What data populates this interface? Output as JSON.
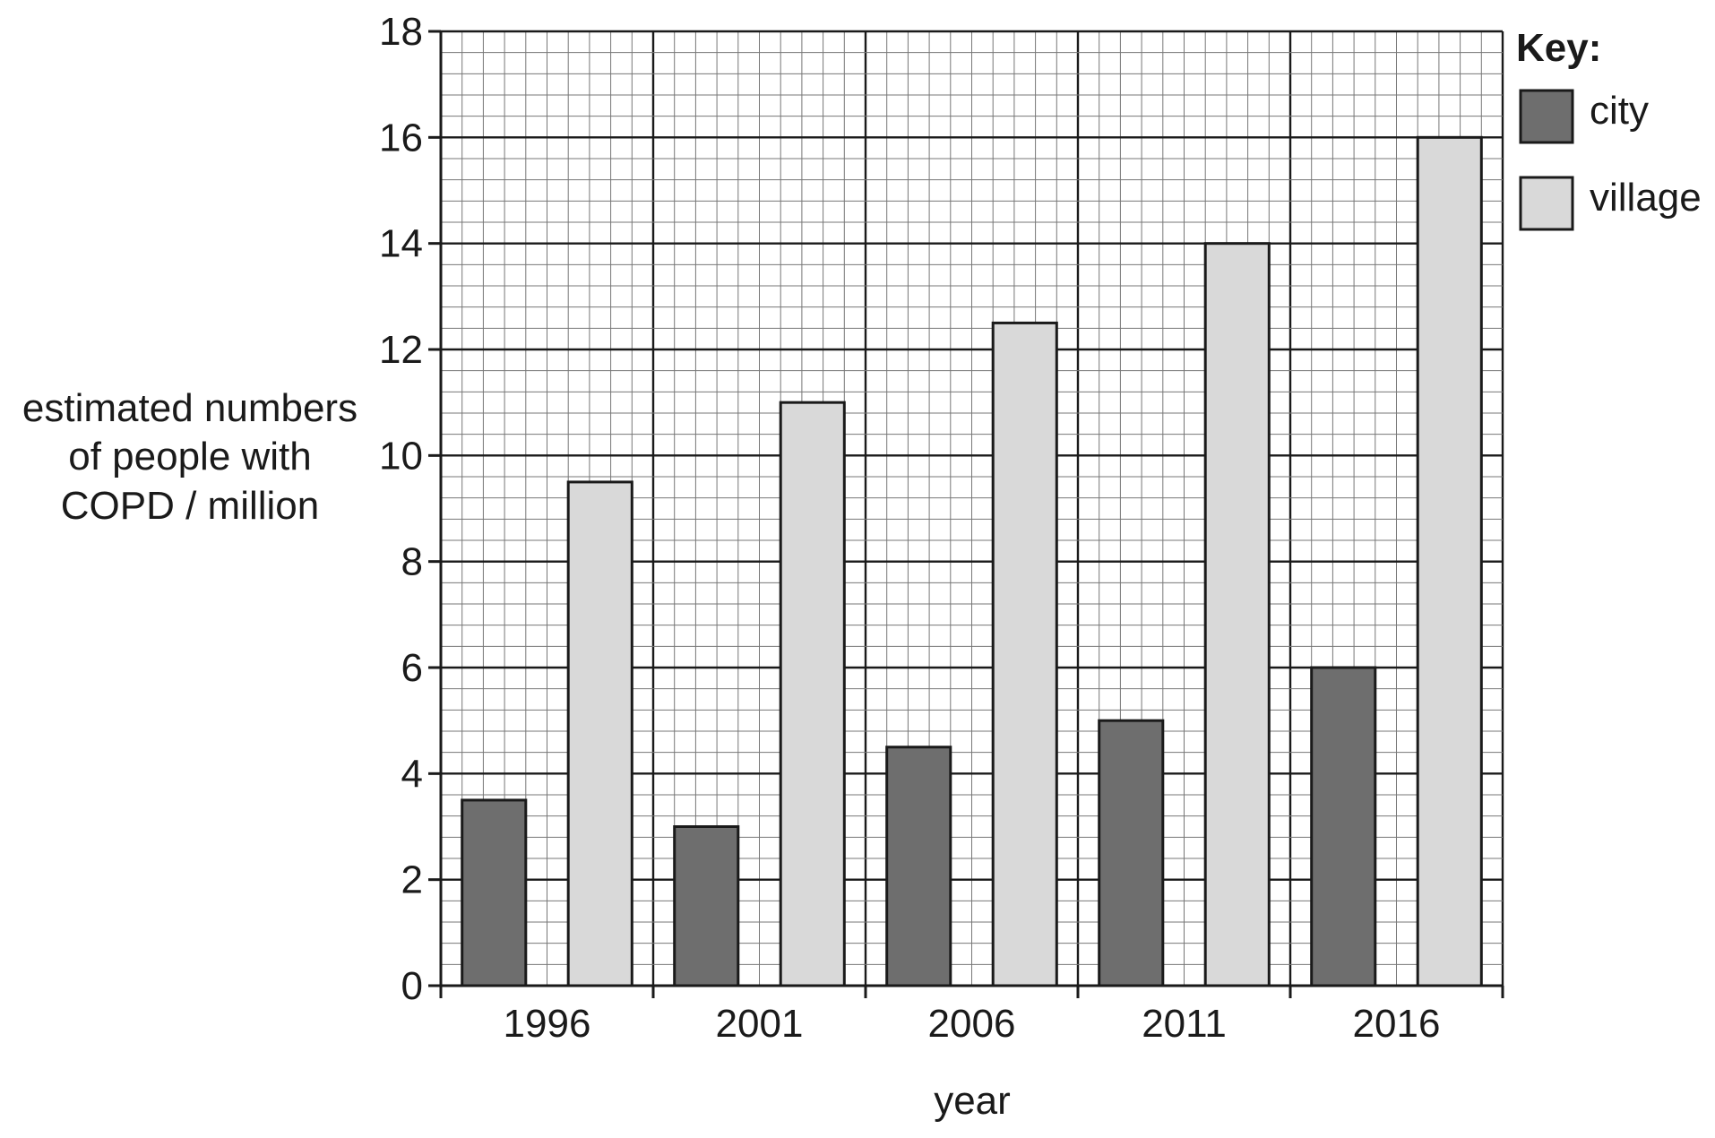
{
  "chart_data": {
    "type": "bar",
    "title": "",
    "xlabel": "year",
    "ylabel_lines": [
      "estimated numbers",
      "of people with",
      "COPD / million"
    ],
    "categories": [
      "1996",
      "2001",
      "2006",
      "2011",
      "2016"
    ],
    "series": [
      {
        "name": "city",
        "values": [
          3.5,
          3.0,
          4.5,
          5.0,
          6.0
        ],
        "color": "#6e6e6e"
      },
      {
        "name": "village",
        "values": [
          9.5,
          11.0,
          12.5,
          14.0,
          16.0
        ],
        "color": "#d9d9d9"
      }
    ],
    "ylim": [
      0,
      18
    ],
    "y_major_step": 2,
    "y_minor_step": 0.4,
    "x_minor_per_category": 10,
    "yticks": [
      "0",
      "2",
      "4",
      "6",
      "8",
      "10",
      "12",
      "14",
      "16",
      "18"
    ],
    "grid": true,
    "legend": {
      "title": "Key:",
      "placement": "top-right"
    }
  }
}
